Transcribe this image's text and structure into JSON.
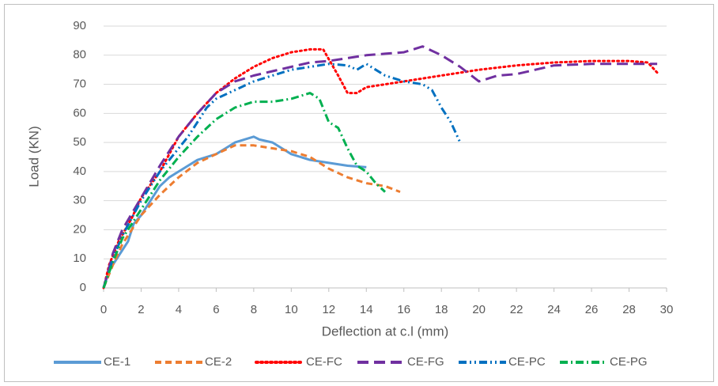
{
  "chart_data": {
    "type": "line",
    "x_label": "Deflection at c.l (mm)",
    "y_label": "Load (KN)",
    "xlim": [
      0,
      30
    ],
    "xticks": [
      0,
      2,
      4,
      6,
      8,
      10,
      12,
      14,
      16,
      18,
      20,
      22,
      24,
      26,
      28,
      30
    ],
    "ylim": [
      0,
      90
    ],
    "yticks": [
      0,
      10,
      20,
      30,
      40,
      50,
      60,
      70,
      80,
      90
    ],
    "grid": true,
    "legend": "bottom",
    "series": [
      {
        "name": "CE-1",
        "color": "#5b9bd5",
        "dash": "solid",
        "x": [
          0,
          0.3,
          0.8,
          1.3,
          1.6,
          2,
          2.5,
          3,
          3.5,
          4,
          4.5,
          5,
          6,
          6.5,
          7,
          7.5,
          8,
          8.3,
          9,
          9.5,
          10,
          10.5,
          11,
          12,
          13,
          14
        ],
        "values": [
          0,
          6,
          11,
          16,
          22,
          25,
          30,
          35,
          38,
          40,
          42,
          44,
          46,
          48,
          50,
          51,
          52,
          51,
          50,
          48,
          46,
          45,
          44,
          43,
          42,
          41.5
        ]
      },
      {
        "name": "CE-2",
        "color": "#ed7d31",
        "dash": "dashed",
        "x": [
          0,
          0.5,
          1,
          1.5,
          2,
          3,
          4,
          5,
          6,
          7,
          8,
          9,
          10,
          11,
          12,
          13,
          14,
          15,
          15.8
        ],
        "values": [
          0,
          8,
          15,
          20,
          25,
          32,
          38,
          43,
          46,
          49,
          49,
          48,
          47,
          45,
          41,
          38,
          36,
          35,
          33
        ]
      },
      {
        "name": "CE-FC",
        "color": "#ff0000",
        "dash": "dotted",
        "x": [
          0,
          0.3,
          0.8,
          1.5,
          2,
          3,
          4,
          5,
          6,
          7,
          8,
          9,
          10,
          11,
          11.7,
          12.5,
          13,
          13.5,
          14,
          15,
          16,
          18,
          20,
          22,
          24,
          26,
          28,
          29,
          29.5
        ],
        "values": [
          0,
          8,
          16,
          24,
          31,
          40,
          52,
          60,
          67,
          72,
          76,
          79,
          81,
          82,
          82,
          73,
          67,
          67,
          69,
          70,
          71,
          73,
          75,
          76.5,
          77.5,
          78,
          78,
          77.5,
          74
        ]
      },
      {
        "name": "CE-FG",
        "color": "#7030a0",
        "dash": "longdash",
        "x": [
          0,
          0.5,
          1,
          2,
          3,
          4,
          5,
          6,
          7,
          8,
          9,
          10,
          11,
          12,
          13,
          14,
          15,
          16,
          17,
          18,
          19,
          20,
          21,
          22,
          23,
          24,
          26,
          28,
          29.5
        ],
        "values": [
          0,
          12,
          20,
          31,
          42,
          52,
          60,
          67,
          71,
          73,
          74.5,
          76,
          77.5,
          78,
          79,
          80,
          80.5,
          81,
          83,
          80,
          76,
          71,
          73,
          73.5,
          75,
          76.5,
          77,
          77,
          77
        ]
      },
      {
        "name": "CE-PC",
        "color": "#0070c0",
        "dash": "dashdotdot",
        "x": [
          0,
          0.5,
          1,
          2,
          3,
          4,
          4.5,
          5,
          5.5,
          6,
          7,
          8,
          9,
          10,
          11,
          12,
          13,
          13.5,
          14,
          15,
          16,
          17,
          17.5,
          18,
          18.5,
          19
        ],
        "values": [
          0,
          10,
          18,
          30,
          40,
          48,
          52,
          57,
          62,
          65,
          68,
          71,
          73,
          75,
          76,
          77,
          76.5,
          75,
          77,
          73,
          71,
          70,
          68,
          62,
          57,
          50
        ]
      },
      {
        "name": "CE-PG",
        "color": "#00b050",
        "dash": "dashdot",
        "x": [
          0,
          0.5,
          1,
          2,
          3,
          4,
          5,
          6,
          7,
          8,
          9,
          10,
          11,
          11.5,
          12,
          12.5,
          13,
          13.5,
          14,
          14.5,
          15
        ],
        "values": [
          0,
          9,
          17,
          27,
          37,
          45,
          52,
          58,
          62,
          64,
          64,
          65,
          67,
          65,
          57,
          55,
          48,
          42,
          40,
          36,
          33
        ]
      }
    ]
  }
}
